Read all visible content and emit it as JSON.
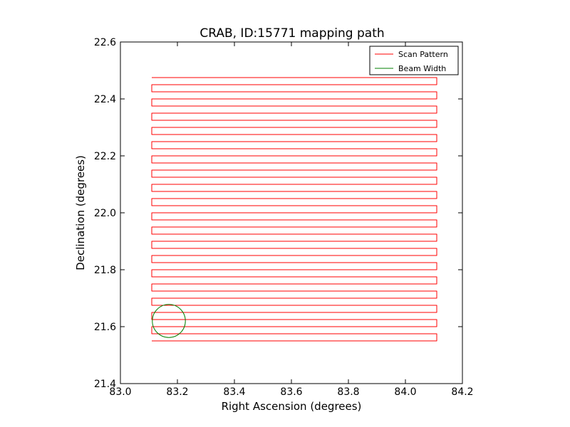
{
  "chart_data": {
    "type": "line",
    "title": "CRAB, ID:15771 mapping path",
    "xlabel": "Right Ascension (degrees)",
    "ylabel": "Declination (degrees)",
    "xlim": [
      83.0,
      84.2
    ],
    "ylim": [
      21.4,
      22.6
    ],
    "xticks": [
      "83.0",
      "83.2",
      "83.4",
      "83.6",
      "83.8",
      "84.0",
      "84.2"
    ],
    "yticks": [
      "21.4",
      "21.6",
      "21.8",
      "22.0",
      "22.2",
      "22.4",
      "22.6"
    ],
    "grid": false,
    "legend": "top-right",
    "series": [
      {
        "name": "Scan Pattern",
        "color": "#ff0000",
        "style": "raster",
        "x_left": 83.11,
        "x_right": 84.11,
        "rows": [
          21.55,
          21.575,
          21.6,
          21.625,
          21.65,
          21.675,
          21.7,
          21.725,
          21.75,
          21.775,
          21.8,
          21.825,
          21.85,
          21.875,
          21.9,
          21.925,
          21.95,
          21.975,
          22.0,
          22.025,
          22.05,
          22.075,
          22.1,
          22.125,
          22.15,
          22.175,
          22.2,
          22.225,
          22.25,
          22.275,
          22.3,
          22.325,
          22.35,
          22.375,
          22.4,
          22.425,
          22.45,
          22.475
        ]
      },
      {
        "name": "Beam Width",
        "color": "#008000",
        "style": "circle",
        "center": [
          83.17,
          21.62
        ],
        "radius": 0.058
      }
    ]
  }
}
